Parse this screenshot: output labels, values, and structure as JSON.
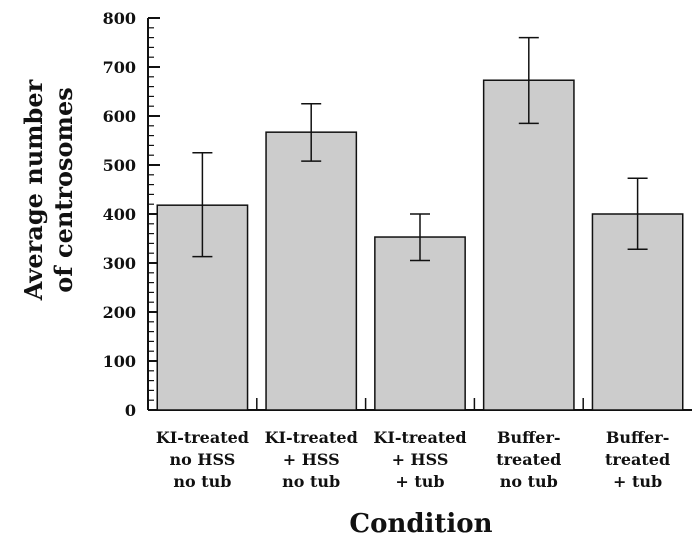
{
  "chart_data": {
    "type": "bar",
    "title": "",
    "xlabel": "Condition",
    "ylabel": [
      "Average number",
      "of centrosomes"
    ],
    "ylim": [
      0,
      800
    ],
    "yticks": [
      "0",
      "100",
      "200",
      "300",
      "400",
      "500",
      "600",
      "700",
      "800"
    ],
    "categories": [
      [
        "KI-treated",
        "no HSS",
        "no tub"
      ],
      [
        "KI-treated",
        "+ HSS",
        "no tub"
      ],
      [
        "KI-treated",
        "+ HSS",
        "+ tub"
      ],
      [
        "Buffer-",
        "treated",
        "no tub"
      ],
      [
        "Buffer-",
        "treated",
        "+ tub"
      ]
    ],
    "values": [
      418,
      567,
      353,
      673,
      400
    ],
    "error_low": [
      313,
      508,
      305,
      585,
      328
    ],
    "error_high": [
      525,
      625,
      400,
      760,
      473
    ],
    "grid": false,
    "bar_color": "#cccccc",
    "edge_color": "#111111"
  }
}
